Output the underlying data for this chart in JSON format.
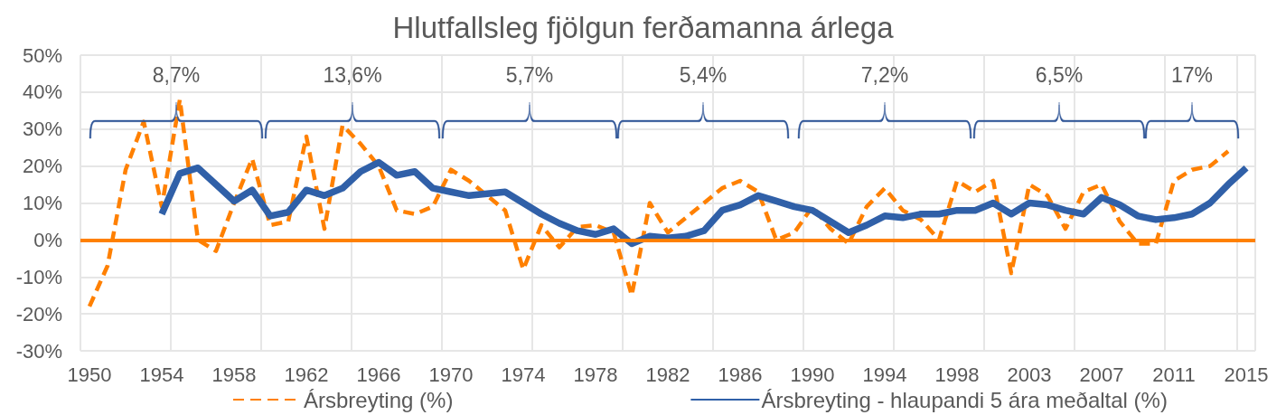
{
  "chart_data": {
    "type": "line",
    "title": "Hlutfallsleg fjölgun ferðamanna árlega",
    "categories": [
      "1950",
      null,
      null,
      null,
      "1954",
      null,
      null,
      null,
      "1958",
      null,
      null,
      null,
      "1962",
      null,
      null,
      null,
      "1966",
      null,
      null,
      null,
      "1970",
      null,
      null,
      null,
      "1974",
      null,
      null,
      null,
      "1978",
      null,
      null,
      null,
      "1982",
      null,
      null,
      null,
      "1986",
      null,
      null,
      null,
      "1990",
      null,
      null,
      null,
      "1994",
      null,
      null,
      null,
      "1998",
      null,
      null,
      null,
      "2003",
      null,
      null,
      null,
      "2007",
      null,
      null,
      null,
      "2011",
      null,
      null,
      null,
      "2015"
    ],
    "series": [
      {
        "name": "Ársbreyting (%)",
        "color": "#ff8000",
        "line_style": "dashed",
        "values": [
          -18,
          -7,
          19,
          32,
          9,
          38,
          0,
          -3,
          10,
          22,
          4,
          5,
          28,
          3,
          31,
          26,
          20,
          8,
          7,
          9,
          19,
          16,
          12,
          8,
          -8,
          4,
          -2,
          3.5,
          4,
          2,
          -15,
          10,
          2,
          6,
          10,
          14,
          16,
          13,
          0,
          2,
          9,
          3,
          -1,
          9,
          14,
          8,
          5.5,
          0,
          16,
          13,
          16,
          -9,
          15,
          12,
          3,
          13,
          15,
          5,
          -1,
          -1,
          16,
          19,
          20,
          24,
          null
        ]
      },
      {
        "name": "Ársbreyting - hlaupandi 5 ára meðaltal (%)",
        "color": "#3060a8",
        "line_style": "solid",
        "values": [
          null,
          null,
          null,
          null,
          7,
          18,
          19.5,
          15,
          10.5,
          13.5,
          6.5,
          7.5,
          13.5,
          12,
          14,
          18.5,
          21,
          17.5,
          18.5,
          14,
          13,
          12,
          12.5,
          13,
          10,
          7,
          4.5,
          2.5,
          1.5,
          3,
          -1,
          1,
          0.5,
          1,
          2.5,
          8,
          9.5,
          12,
          10.5,
          9,
          8,
          5,
          2,
          4,
          6.5,
          6,
          7,
          7,
          8,
          8,
          10,
          7,
          10,
          9.5,
          8,
          7,
          11.5,
          9.5,
          6.5,
          5.5,
          6,
          7,
          10,
          15,
          19.5
        ]
      }
    ],
    "ylim": [
      -30,
      50
    ],
    "yticks": [
      {
        "value": -30,
        "label": "-30%"
      },
      {
        "value": -20,
        "label": "-20%"
      },
      {
        "value": -10,
        "label": "-10%"
      },
      {
        "value": 0,
        "label": "0%"
      },
      {
        "value": 10,
        "label": "10%"
      },
      {
        "value": 20,
        "label": "20%"
      },
      {
        "value": 30,
        "label": "30%"
      },
      {
        "value": 40,
        "label": "40%"
      },
      {
        "value": 50,
        "label": "50%"
      }
    ],
    "ref_lines": [
      {
        "axis": "y",
        "value": 0,
        "color": "#ff8000"
      }
    ],
    "annotations": [
      "8,7%",
      "13,6%",
      "5,7%",
      "5,4%",
      "7,2%",
      "6,5%",
      "17%"
    ],
    "grid": true,
    "legend": "bottom",
    "marker": "none"
  }
}
